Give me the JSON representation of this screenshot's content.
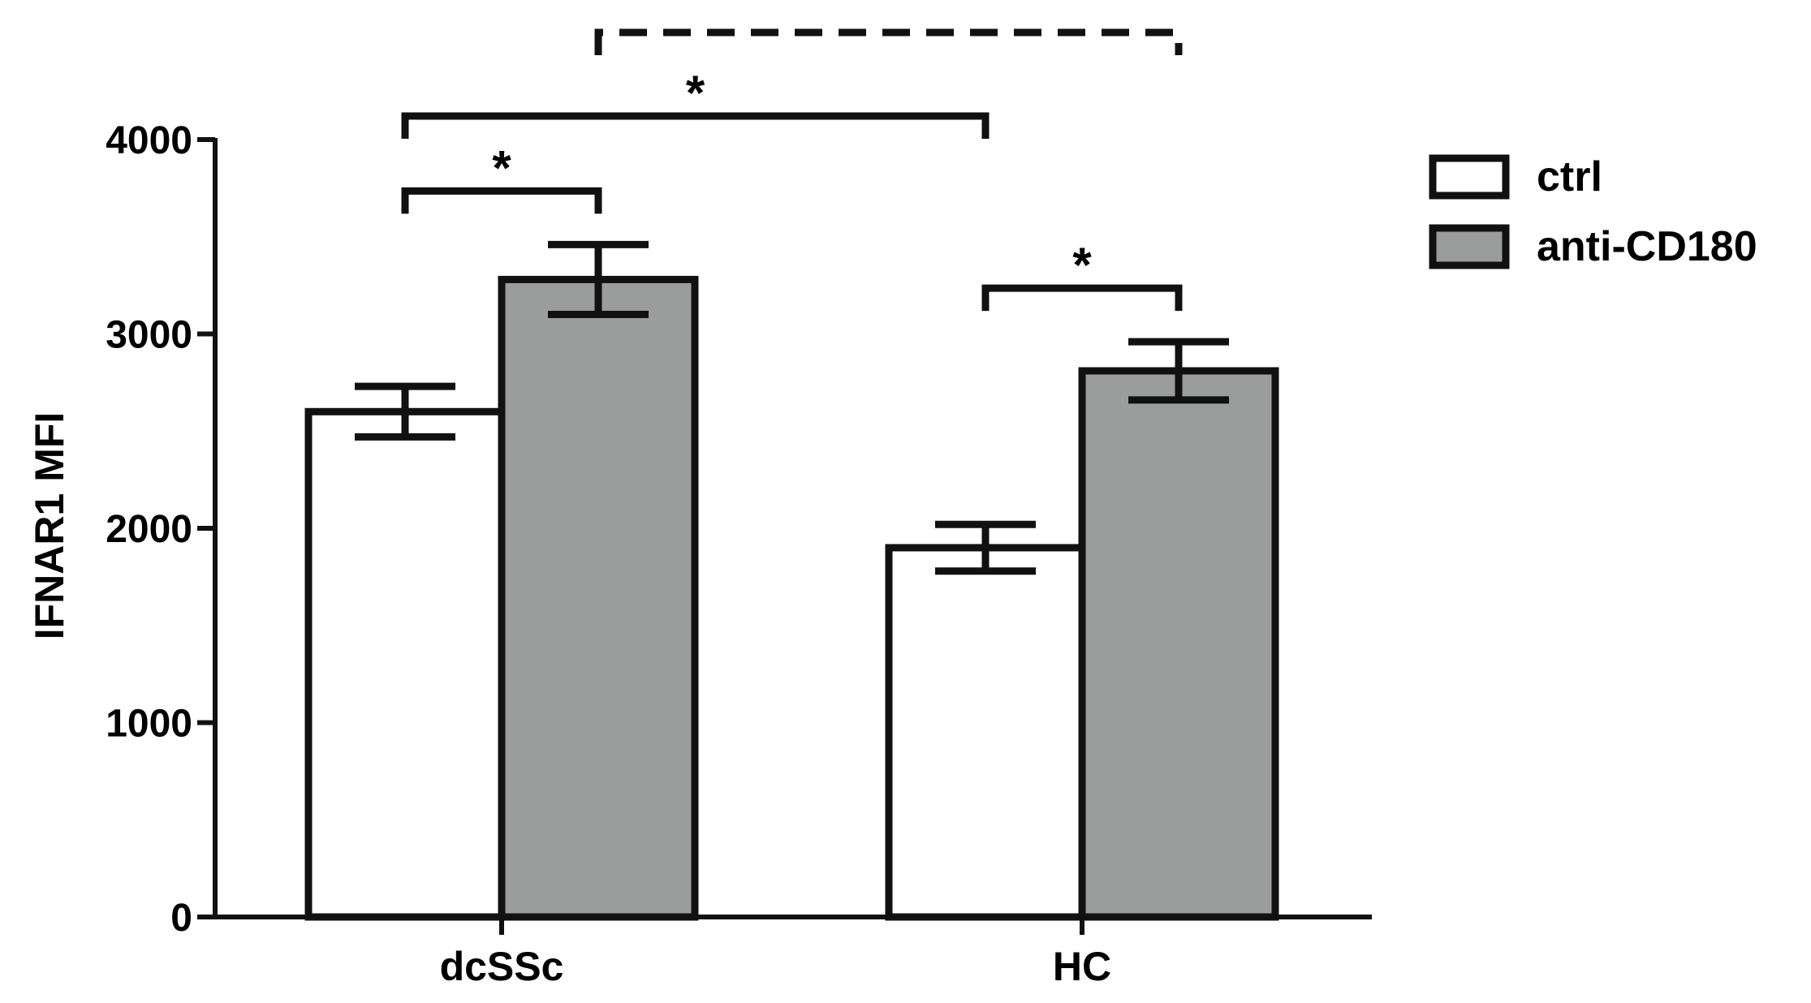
{
  "chart_data": {
    "type": "bar",
    "title": "",
    "xlabel": "",
    "ylabel": "IFNAR1 MFI",
    "ylim": [
      0,
      4000
    ],
    "yticks": [
      0,
      1000,
      2000,
      3000,
      4000
    ],
    "ytick_labels": [
      "0",
      "1000",
      "2000",
      "3000",
      "4000"
    ],
    "categories": [
      "dcSSc",
      "HC"
    ],
    "series": [
      {
        "name": "ctrl",
        "values": [
          2600,
          1900
        ],
        "errors": [
          130,
          120
        ],
        "color": "#ffffff"
      },
      {
        "name": "anti-CD180",
        "values": [
          3280,
          2810
        ],
        "errors": [
          180,
          150
        ],
        "color": "#9a9d9b"
      }
    ],
    "legend": {
      "position": "right",
      "entries": [
        "ctrl",
        "anti-CD180"
      ]
    },
    "grid": false,
    "annotations": [
      {
        "label": "*",
        "from": {
          "category": 0,
          "series": 0
        },
        "to": {
          "category": 0,
          "series": 1
        },
        "style": "solid",
        "level": 1
      },
      {
        "label": "*",
        "from": {
          "category": 1,
          "series": 0
        },
        "to": {
          "category": 1,
          "series": 1
        },
        "style": "solid",
        "level": 1
      },
      {
        "label": "*",
        "from": {
          "category": 0,
          "series": 0
        },
        "to": {
          "category": 1,
          "series": 0
        },
        "style": "solid",
        "level": 2
      },
      {
        "label": "",
        "from": {
          "category": 0,
          "series": 1
        },
        "to": {
          "category": 1,
          "series": 1
        },
        "style": "dashed",
        "level": 3
      }
    ]
  }
}
